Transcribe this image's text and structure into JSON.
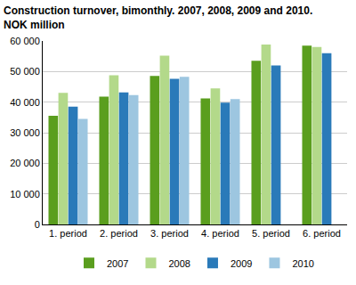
{
  "chart_data": {
    "type": "bar",
    "title": "Construction turnover, bimonthly. 2007, 2008, 2009 and 2010.",
    "subtitle": "NOK million",
    "categories": [
      "1. period",
      "2. period",
      "3. period",
      "4. period",
      "5. period",
      "6. period"
    ],
    "series": [
      {
        "name": "2007",
        "color": "#5a9e1e",
        "values": [
          35500,
          41800,
          48600,
          41200,
          53500,
          58500
        ]
      },
      {
        "name": "2008",
        "color": "#b3d98a",
        "values": [
          43000,
          48800,
          55200,
          44500,
          58800,
          58000
        ]
      },
      {
        "name": "2009",
        "color": "#2a7ab9",
        "values": [
          38500,
          43200,
          47600,
          39800,
          52000,
          56000
        ]
      },
      {
        "name": "2010",
        "color": "#9dc6e0",
        "values": [
          34500,
          42300,
          48300,
          41000,
          null,
          null
        ]
      }
    ],
    "ylim": [
      0,
      60000
    ],
    "yticks": [
      0,
      {
        "value": 10000,
        "label": "10 000"
      },
      {
        "value": 20000,
        "label": "20 000"
      },
      {
        "value": 30000,
        "label": "30 000"
      },
      {
        "value": 40000,
        "label": "40 000"
      },
      {
        "value": 50000,
        "label": "50 000"
      },
      {
        "value": 60000,
        "label": "60 000"
      }
    ],
    "grid": true,
    "legend": "bottom"
  }
}
